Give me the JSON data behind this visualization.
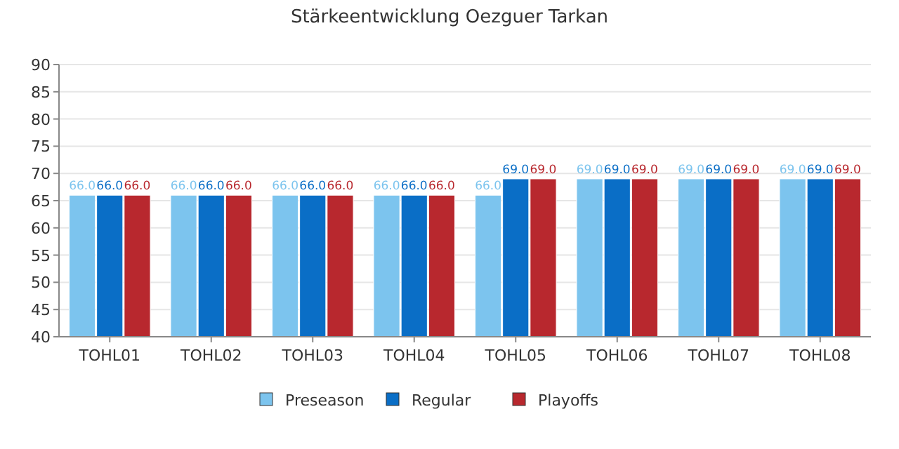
{
  "chart_data": {
    "type": "bar",
    "title": "Stärkeentwicklung Oezguer Tarkan",
    "categories": [
      "TOHL01",
      "TOHL02",
      "TOHL03",
      "TOHL04",
      "TOHL05",
      "TOHL06",
      "TOHL07",
      "TOHL08"
    ],
    "series": [
      {
        "name": "Preseason",
        "color": "#7cc4ee",
        "values": [
          66,
          66,
          66,
          66,
          66,
          69,
          69,
          69
        ],
        "value_labels": [
          "66.0",
          "66.0",
          "66.0",
          "66.0",
          "66.0",
          "69.0",
          "69.0",
          "69.0"
        ]
      },
      {
        "name": "Regular",
        "color": "#0a6ec6",
        "values": [
          66,
          66,
          66,
          66,
          69,
          69,
          69,
          69
        ],
        "value_labels": [
          "66.0",
          "66.0",
          "66.0",
          "66.0",
          "69.0",
          "69.0",
          "69.0",
          "69.0"
        ]
      },
      {
        "name": "Playoffs",
        "color": "#b8282e",
        "values": [
          66,
          66,
          66,
          66,
          69,
          69,
          69,
          69
        ],
        "value_labels": [
          "66.0",
          "66.0",
          "66.0",
          "66.0",
          "69.0",
          "69.0",
          "69.0",
          "69.0"
        ]
      }
    ],
    "ylim": [
      40,
      90
    ],
    "yticks": [
      40,
      45,
      50,
      55,
      60,
      65,
      70,
      75,
      80,
      85,
      90
    ],
    "grid": "y",
    "legend": "bottom"
  }
}
